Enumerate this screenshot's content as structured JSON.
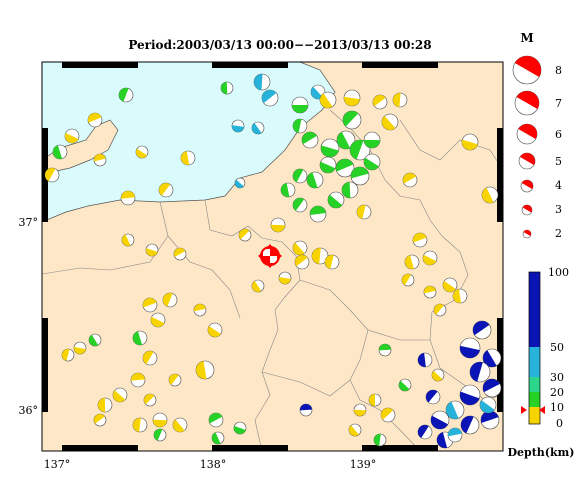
{
  "title": "Period:2003/03/13 00:00−−2013/03/13 00:28",
  "axes": {
    "lon_labels": [
      "137°",
      "138°",
      "139°"
    ],
    "lat_labels": [
      "37°",
      "36°"
    ]
  },
  "magnitude_legend": {
    "header": "M",
    "entries": [
      "8",
      "7",
      "6",
      "5",
      "4",
      "3",
      "2"
    ]
  },
  "depth_legend": {
    "tick_labels": [
      "100",
      "50",
      "30",
      "20",
      "10",
      "0"
    ],
    "title": "Depth(km)"
  },
  "colors": {
    "land": "#fde7c6",
    "sea": "#d9fbfb",
    "depth_0_10": "#f7d400",
    "depth_10_20": "#27d227",
    "depth_20_30": "#27d227",
    "depth_30_50": "#27b3d9",
    "depth_50_100": "#0b14b4",
    "epicenter": "#ff0000"
  },
  "events_depth_mix": {
    "shallow_yellow": "Depth 0-10 km",
    "green": "Depth 10-30 km",
    "cyan": "Depth 30-50 km",
    "blue": "Depth 50-100 km"
  }
}
